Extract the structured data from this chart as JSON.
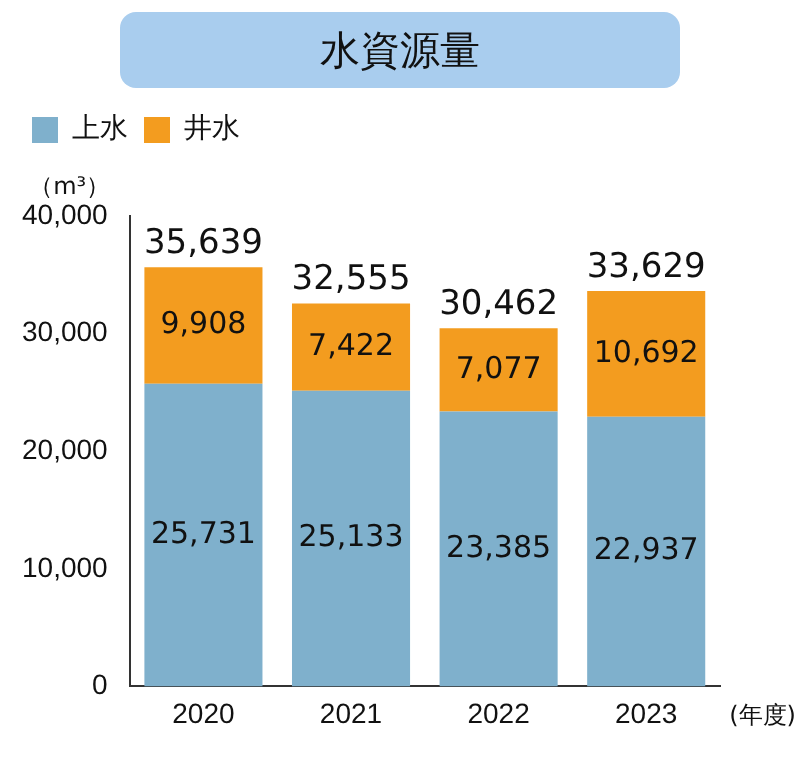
{
  "chart_data": {
    "type": "bar",
    "title": "水資源量",
    "ylabel": "（m³）",
    "xlabel": "(年度)",
    "categories": [
      "2020",
      "2021",
      "2022",
      "2023"
    ],
    "series": [
      {
        "name": "上水",
        "color": "#7fb0cc",
        "values": [
          25731,
          25133,
          23385,
          22937
        ],
        "value_labels": [
          "25,731",
          "25,133",
          "23,385",
          "22,937"
        ]
      },
      {
        "name": "井水",
        "color": "#f39c1f",
        "values": [
          9908,
          7422,
          7077,
          10692
        ],
        "value_labels": [
          "9,908",
          "7,422",
          "7,077",
          "10,692"
        ]
      }
    ],
    "totals": [
      "35,639",
      "32,555",
      "30,462",
      "33,629"
    ],
    "stacked": true,
    "ylim": [
      0,
      40000
    ],
    "yticks": [
      0,
      {
        "value": 10000,
        "label": "10,000"
      },
      {
        "value": 20000,
        "label": "20,000"
      },
      {
        "value": 30000,
        "label": "30,000"
      },
      {
        "value": 40000,
        "label": "40,000"
      }
    ],
    "grid": false,
    "legend": "top left"
  }
}
